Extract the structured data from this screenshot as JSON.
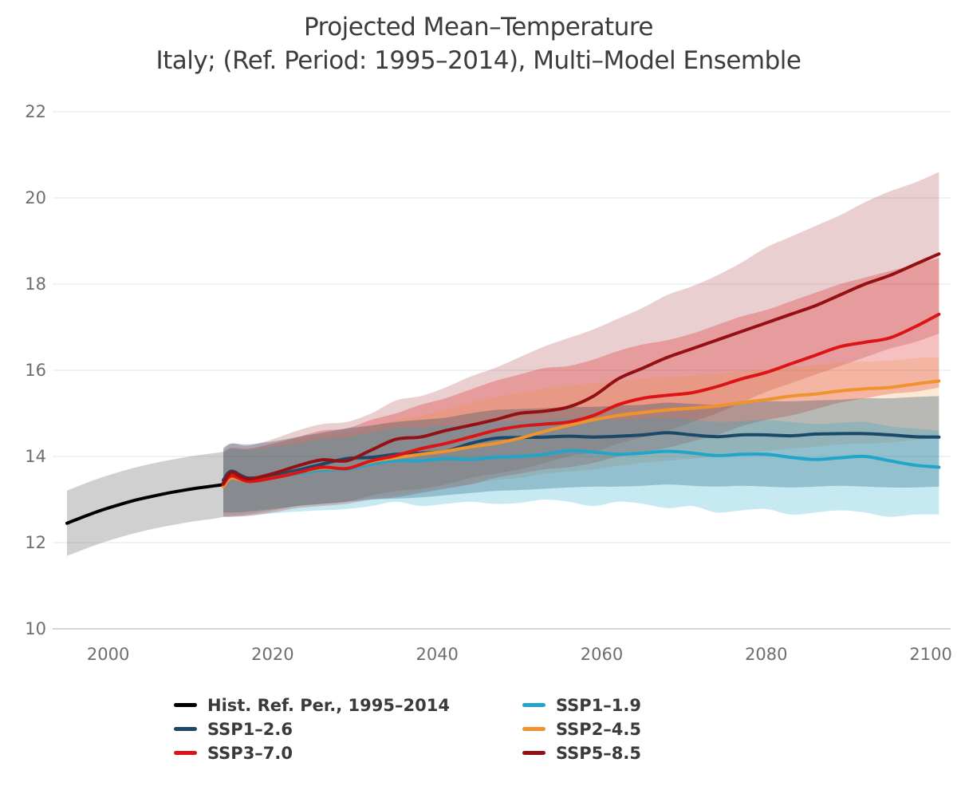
{
  "title": {
    "line1": "Projected Mean–Temperature",
    "line2": "Italy; (Ref. Period: 1995–2014), Multi–Model Ensemble"
  },
  "legend": {
    "items": [
      {
        "label": "Hist. Ref. Per., 1995–2014",
        "color": "#000000"
      },
      {
        "label": "SSP1–1.9",
        "color": "#21a6c9"
      },
      {
        "label": "SSP1–2.6",
        "color": "#1b4969"
      },
      {
        "label": "SSP2–4.5",
        "color": "#f0932d"
      },
      {
        "label": "SSP3–7.0",
        "color": "#dc1415"
      },
      {
        "label": "SSP5–8.5",
        "color": "#931114"
      }
    ]
  },
  "chart_data": {
    "type": "line",
    "title": "Projected Mean–Temperature",
    "subtitle": "Italy; (Ref. Period: 1995–2014), Multi–Model Ensemble",
    "grid": "horizontal",
    "legend_position": "bottom",
    "grid_color": "#e2e4e6",
    "axis_line_color": "#ccd6dd",
    "tick_color": "#6e6e6e",
    "x_axis": {
      "ticks": [
        2000,
        2020,
        2040,
        2060,
        2080,
        2100
      ],
      "range": [
        1995,
        2101
      ]
    },
    "y_axis": {
      "ticks": [
        22,
        20,
        18,
        16,
        14,
        12,
        10
      ],
      "range": [
        10,
        22
      ]
    },
    "line_order": [
      0,
      5,
      4,
      3,
      2,
      1
    ],
    "series": [
      {
        "key": "hist",
        "name": "Hist. Ref. Per., 1995–2014",
        "color": "#000000",
        "band_color": "rgba(150,150,150,0.45)",
        "years": [
          1995,
          1997,
          1999,
          2001,
          2003,
          2005,
          2007,
          2009,
          2011,
          2013,
          2014
        ],
        "mean": [
          12.45,
          12.6,
          12.74,
          12.86,
          12.97,
          13.06,
          13.14,
          13.21,
          13.27,
          13.32,
          13.35
        ],
        "lo": [
          11.69,
          11.84,
          11.98,
          12.1,
          12.21,
          12.3,
          12.38,
          12.45,
          12.51,
          12.56,
          12.6
        ],
        "hi": [
          13.21,
          13.36,
          13.5,
          13.62,
          13.73,
          13.82,
          13.9,
          13.97,
          14.03,
          14.08,
          14.11
        ]
      },
      {
        "key": "ssp585",
        "name": "SSP5–8.5",
        "color": "#931114",
        "band_color": "rgba(147,17,20,0.20)",
        "years": [
          2014,
          2015,
          2017,
          2020,
          2023,
          2026,
          2029,
          2032,
          2035,
          2038,
          2041,
          2044,
          2047,
          2050,
          2053,
          2056,
          2059,
          2062,
          2065,
          2068,
          2071,
          2074,
          2077,
          2080,
          2083,
          2086,
          2089,
          2092,
          2095,
          2098,
          2101
        ],
        "mean": [
          13.38,
          13.63,
          13.48,
          13.6,
          13.78,
          13.92,
          13.9,
          14.15,
          14.4,
          14.45,
          14.6,
          14.72,
          14.85,
          15.0,
          15.05,
          15.15,
          15.4,
          15.8,
          16.05,
          16.3,
          16.5,
          16.7,
          16.9,
          17.1,
          17.3,
          17.5,
          17.75,
          18.0,
          18.2,
          18.45,
          18.7
        ],
        "lo": [
          12.6,
          12.62,
          12.65,
          12.75,
          12.85,
          12.9,
          12.95,
          13.1,
          13.2,
          13.25,
          13.35,
          13.5,
          13.6,
          13.7,
          13.85,
          14.0,
          14.1,
          14.3,
          14.45,
          14.6,
          14.8,
          15.0,
          15.25,
          15.5,
          15.7,
          15.9,
          16.1,
          16.3,
          16.5,
          16.65,
          16.85
        ],
        "hi": [
          14.15,
          14.3,
          14.25,
          14.4,
          14.6,
          14.75,
          14.8,
          15.0,
          15.3,
          15.4,
          15.6,
          15.85,
          16.05,
          16.3,
          16.55,
          16.75,
          16.95,
          17.2,
          17.45,
          17.75,
          17.95,
          18.2,
          18.5,
          18.85,
          19.1,
          19.35,
          19.6,
          19.9,
          20.15,
          20.35,
          20.6
        ]
      },
      {
        "key": "ssp370",
        "name": "SSP3–7.0",
        "color": "#dc1415",
        "band_color": "rgba(220,20,21,0.27)",
        "years": [
          2014,
          2015,
          2017,
          2020,
          2023,
          2026,
          2029,
          2032,
          2035,
          2038,
          2041,
          2044,
          2047,
          2050,
          2053,
          2056,
          2059,
          2062,
          2065,
          2068,
          2071,
          2074,
          2077,
          2080,
          2083,
          2086,
          2089,
          2092,
          2095,
          2098,
          2101
        ],
        "mean": [
          13.35,
          13.55,
          13.42,
          13.5,
          13.62,
          13.75,
          13.72,
          13.9,
          14.02,
          14.18,
          14.3,
          14.45,
          14.6,
          14.7,
          14.75,
          14.8,
          14.95,
          15.2,
          15.35,
          15.42,
          15.48,
          15.62,
          15.8,
          15.95,
          16.15,
          16.35,
          16.55,
          16.65,
          16.75,
          17.0,
          17.3
        ],
        "lo": [
          12.6,
          12.6,
          12.62,
          12.7,
          12.8,
          12.85,
          12.9,
          13.0,
          13.05,
          13.15,
          13.25,
          13.35,
          13.5,
          13.6,
          13.7,
          13.75,
          13.85,
          14.0,
          14.1,
          14.2,
          14.35,
          14.5,
          14.7,
          14.85,
          14.95,
          15.1,
          15.25,
          15.35,
          15.45,
          15.5,
          15.6
        ],
        "hi": [
          14.1,
          14.2,
          14.18,
          14.3,
          14.45,
          14.6,
          14.65,
          14.85,
          15.0,
          15.2,
          15.35,
          15.55,
          15.75,
          15.9,
          16.05,
          16.1,
          16.25,
          16.45,
          16.6,
          16.7,
          16.85,
          17.05,
          17.25,
          17.4,
          17.6,
          17.8,
          18.0,
          18.15,
          18.3,
          18.45,
          18.6
        ]
      },
      {
        "key": "ssp245",
        "name": "SSP2–4.5",
        "color": "#f0932d",
        "band_color": "rgba(240,147,45,0.20)",
        "years": [
          2014,
          2015,
          2017,
          2020,
          2023,
          2026,
          2029,
          2032,
          2035,
          2038,
          2041,
          2044,
          2047,
          2050,
          2053,
          2056,
          2059,
          2062,
          2065,
          2068,
          2071,
          2074,
          2077,
          2080,
          2083,
          2086,
          2089,
          2092,
          2095,
          2098,
          2101
        ],
        "mean": [
          13.3,
          13.5,
          13.42,
          13.5,
          13.62,
          13.73,
          13.72,
          13.88,
          13.97,
          14.05,
          14.12,
          14.22,
          14.3,
          14.42,
          14.58,
          14.72,
          14.85,
          14.95,
          15.02,
          15.08,
          15.12,
          15.17,
          15.25,
          15.32,
          15.4,
          15.45,
          15.52,
          15.57,
          15.6,
          15.68,
          15.75
        ],
        "lo": [
          12.65,
          12.65,
          12.68,
          12.75,
          12.85,
          12.9,
          12.95,
          13.05,
          13.1,
          13.2,
          13.28,
          13.35,
          13.45,
          13.5,
          13.6,
          13.65,
          13.7,
          13.78,
          13.85,
          13.9,
          13.95,
          14.0,
          14.08,
          14.12,
          14.18,
          14.22,
          14.28,
          14.3,
          14.32,
          14.38,
          14.42
        ],
        "hi": [
          14.05,
          14.15,
          14.15,
          14.25,
          14.4,
          14.5,
          14.55,
          14.7,
          14.85,
          14.95,
          15.1,
          15.25,
          15.38,
          15.48,
          15.58,
          15.65,
          15.7,
          15.75,
          15.82,
          15.85,
          15.88,
          15.92,
          15.98,
          16.02,
          16.08,
          16.12,
          16.18,
          16.2,
          16.22,
          16.28,
          16.3
        ]
      },
      {
        "key": "ssp126",
        "name": "SSP1–2.6",
        "color": "#1b4969",
        "band_color": "rgba(27,73,105,0.30)",
        "years": [
          2014,
          2015,
          2017,
          2020,
          2023,
          2026,
          2029,
          2032,
          2035,
          2038,
          2041,
          2044,
          2047,
          2050,
          2053,
          2056,
          2059,
          2062,
          2065,
          2068,
          2071,
          2074,
          2077,
          2080,
          2083,
          2086,
          2089,
          2092,
          2095,
          2098,
          2101
        ],
        "mean": [
          13.45,
          13.66,
          13.5,
          13.56,
          13.68,
          13.82,
          13.95,
          13.98,
          14.05,
          14.08,
          14.12,
          14.3,
          14.42,
          14.44,
          14.45,
          14.47,
          14.45,
          14.47,
          14.5,
          14.55,
          14.5,
          14.46,
          14.5,
          14.5,
          14.48,
          14.52,
          14.53,
          14.53,
          14.5,
          14.46,
          14.45
        ],
        "lo": [
          12.7,
          12.7,
          12.72,
          12.78,
          12.85,
          12.9,
          12.95,
          13.0,
          13.02,
          13.05,
          13.1,
          13.15,
          13.2,
          13.22,
          13.25,
          13.28,
          13.3,
          13.3,
          13.32,
          13.35,
          13.32,
          13.3,
          13.32,
          13.3,
          13.28,
          13.3,
          13.32,
          13.3,
          13.28,
          13.28,
          13.3
        ],
        "hi": [
          14.2,
          14.3,
          14.28,
          14.35,
          14.45,
          14.55,
          14.65,
          14.72,
          14.8,
          14.85,
          14.9,
          15.0,
          15.08,
          15.1,
          15.12,
          15.15,
          15.15,
          15.18,
          15.2,
          15.25,
          15.22,
          15.2,
          15.25,
          15.28,
          15.28,
          15.3,
          15.32,
          15.35,
          15.35,
          15.38,
          15.4
        ]
      },
      {
        "key": "ssp119",
        "name": "SSP1–1.9",
        "color": "#21a6c9",
        "band_color": "rgba(33,166,201,0.25)",
        "years": [
          2014,
          2015,
          2017,
          2020,
          2023,
          2026,
          2029,
          2032,
          2035,
          2038,
          2041,
          2044,
          2047,
          2050,
          2053,
          2056,
          2059,
          2062,
          2065,
          2068,
          2071,
          2074,
          2077,
          2080,
          2083,
          2086,
          2089,
          2092,
          2095,
          2098,
          2101
        ],
        "mean": [
          13.4,
          13.58,
          13.45,
          13.52,
          13.6,
          13.68,
          13.7,
          13.82,
          13.9,
          13.9,
          13.95,
          13.93,
          13.98,
          14.0,
          14.05,
          14.13,
          14.1,
          14.05,
          14.08,
          14.12,
          14.08,
          14.02,
          14.05,
          14.05,
          13.98,
          13.93,
          13.97,
          14.0,
          13.9,
          13.8,
          13.75
        ],
        "lo": [
          12.6,
          12.6,
          12.62,
          12.68,
          12.72,
          12.75,
          12.78,
          12.85,
          12.95,
          12.85,
          12.9,
          12.95,
          12.9,
          12.92,
          13.0,
          12.95,
          12.85,
          12.95,
          12.9,
          12.8,
          12.85,
          12.7,
          12.75,
          12.78,
          12.65,
          12.7,
          12.75,
          12.7,
          12.6,
          12.65,
          12.65
        ],
        "hi": [
          14.1,
          14.18,
          14.15,
          14.22,
          14.3,
          14.4,
          14.45,
          14.55,
          14.65,
          14.68,
          14.72,
          14.75,
          14.8,
          14.82,
          14.85,
          14.9,
          14.88,
          14.85,
          14.88,
          14.9,
          14.85,
          14.8,
          14.82,
          14.85,
          14.8,
          14.75,
          14.78,
          14.8,
          14.7,
          14.65,
          14.6
        ]
      }
    ]
  }
}
